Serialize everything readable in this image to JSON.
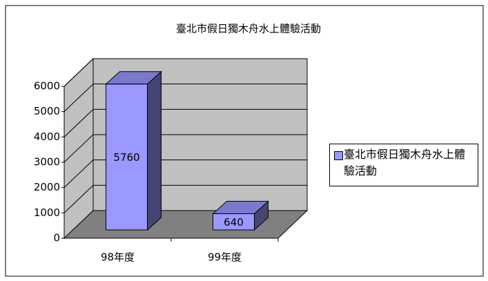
{
  "chart_data": {
    "type": "bar",
    "title": "臺北市假日獨木舟水上體驗活動",
    "categories": [
      "98年度",
      "99年度"
    ],
    "series": [
      {
        "name": "臺北市假日獨木舟水上體驗活動",
        "color": "#9999ff",
        "values": [
          5760,
          640
        ]
      }
    ],
    "ylim": [
      0,
      6000
    ],
    "yticks": [
      0,
      1000,
      2000,
      3000,
      4000,
      5000,
      6000
    ],
    "grid": true
  }
}
